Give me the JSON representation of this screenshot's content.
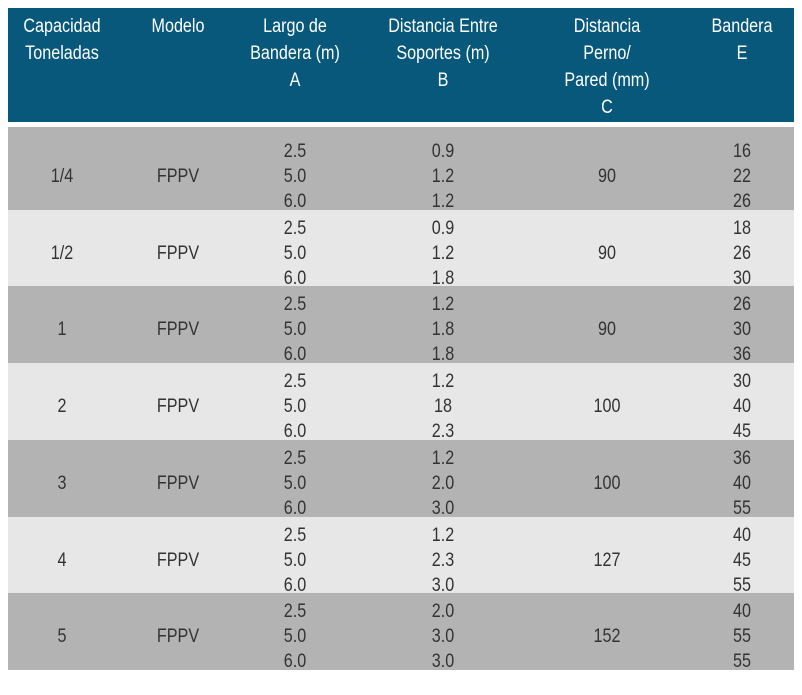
{
  "table": {
    "header": [
      [
        "Capacidad",
        "Toneladas"
      ],
      [
        "Modelo"
      ],
      [
        "Largo de",
        "Bandera (m)",
        "A"
      ],
      [
        "Distancia Entre",
        "Soportes (m)",
        "B"
      ],
      [
        "Distancia",
        "Perno/",
        "Pared (mm)",
        "C"
      ],
      [
        "Bandera",
        "E"
      ]
    ],
    "rows": [
      [
        "1/4",
        "FPPV",
        [
          "2.5",
          "5.0",
          "6.0"
        ],
        [
          "0.9",
          "1.2",
          "1.2"
        ],
        "90",
        [
          "16",
          "22",
          "26"
        ]
      ],
      [
        "1/2",
        "FPPV",
        [
          "2.5",
          "5.0",
          "6.0"
        ],
        [
          "0.9",
          "1.2",
          "1.8"
        ],
        "90",
        [
          "18",
          "26",
          "30"
        ]
      ],
      [
        "1",
        "FPPV",
        [
          "2.5",
          "5.0",
          "6.0"
        ],
        [
          "1.2",
          "1.8",
          "1.8"
        ],
        "90",
        [
          "26",
          "30",
          "36"
        ]
      ],
      [
        "2",
        "FPPV",
        [
          "2.5",
          "5.0",
          "6.0"
        ],
        [
          "1.2",
          "18",
          "2.3"
        ],
        "100",
        [
          "30",
          "40",
          "45"
        ]
      ],
      [
        "3",
        "FPPV",
        [
          "2.5",
          "5.0",
          "6.0"
        ],
        [
          "1.2",
          "2.0",
          "3.0"
        ],
        "100",
        [
          "36",
          "40",
          "55"
        ]
      ],
      [
        "4",
        "FPPV",
        [
          "2.5",
          "5.0",
          "6.0"
        ],
        [
          "1.2",
          "2.3",
          "3.0"
        ],
        "127",
        [
          "40",
          "45",
          "55"
        ]
      ],
      [
        "5",
        "FPPV",
        [
          "2.5",
          "5.0",
          "6.0"
        ],
        [
          "2.0",
          "3.0",
          "3.0"
        ],
        "152",
        [
          "40",
          "55",
          "55"
        ]
      ]
    ]
  }
}
